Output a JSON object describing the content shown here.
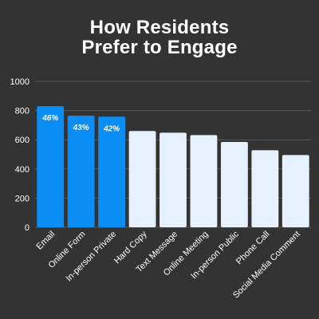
{
  "chart_data": {
    "type": "bar",
    "title_lines": [
      "How Residents",
      "Prefer to Engage"
    ],
    "categories": [
      "Email",
      "Online Form",
      "In-person Private",
      "Hard Copy",
      "Text Message",
      "Online Meeting",
      "In-person Public",
      "Phone Call",
      "Social Media Comment"
    ],
    "values": [
      830,
      765,
      758,
      660,
      648,
      632,
      585,
      528,
      495
    ],
    "data_labels": [
      "46%",
      "43%",
      "42%",
      "",
      "",
      "",
      "",
      "",
      ""
    ],
    "highlighted": [
      true,
      true,
      true,
      false,
      false,
      false,
      false,
      false,
      false
    ],
    "ylim": [
      0,
      1000
    ],
    "yticks": [
      0,
      200,
      400,
      600,
      800,
      1000
    ],
    "grid": true,
    "colors": {
      "background": "#333333",
      "highlight_bar": "#0a8ef5",
      "regular_bar": "#e6f1fd",
      "gridline": "#5a5a5a",
      "text": "#ffffff"
    }
  }
}
